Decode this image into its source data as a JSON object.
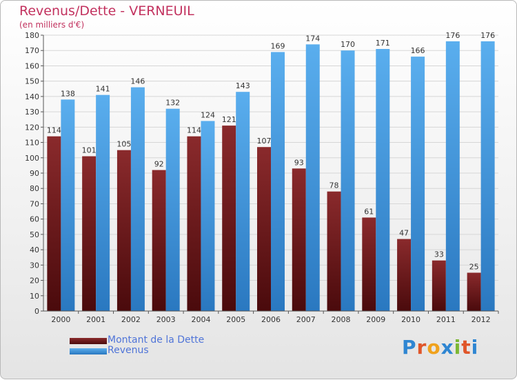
{
  "title": "Revenus/Dette - VERNEUIL",
  "subtitle": "(en milliers d'€)",
  "logo_text": "Proxiti",
  "colors": {
    "title": "#c2315e",
    "dette": "#7a1f22",
    "revenus": "#3b93dd",
    "legend_text": "#4f74d8"
  },
  "chart_data": {
    "type": "bar",
    "title": "Revenus/Dette - VERNEUIL",
    "subtitle": "(en milliers d'€)",
    "categories": [
      "2000",
      "2001",
      "2002",
      "2003",
      "2004",
      "2005",
      "2006",
      "2007",
      "2008",
      "2009",
      "2010",
      "2011",
      "2012"
    ],
    "series": [
      {
        "name": "Montant de la Dette",
        "values": [
          114,
          101,
          105,
          92,
          114,
          121,
          107,
          93,
          78,
          61,
          47,
          33,
          25
        ]
      },
      {
        "name": "Revenus",
        "values": [
          138,
          141,
          146,
          132,
          124,
          143,
          169,
          174,
          170,
          171,
          166,
          176,
          176
        ]
      }
    ],
    "ylim": [
      0,
      180
    ],
    "yticks": [
      0,
      10,
      20,
      30,
      40,
      50,
      60,
      70,
      80,
      90,
      100,
      110,
      120,
      130,
      140,
      150,
      160,
      170,
      180
    ],
    "grid": true,
    "legend_position": "bottom-left"
  }
}
